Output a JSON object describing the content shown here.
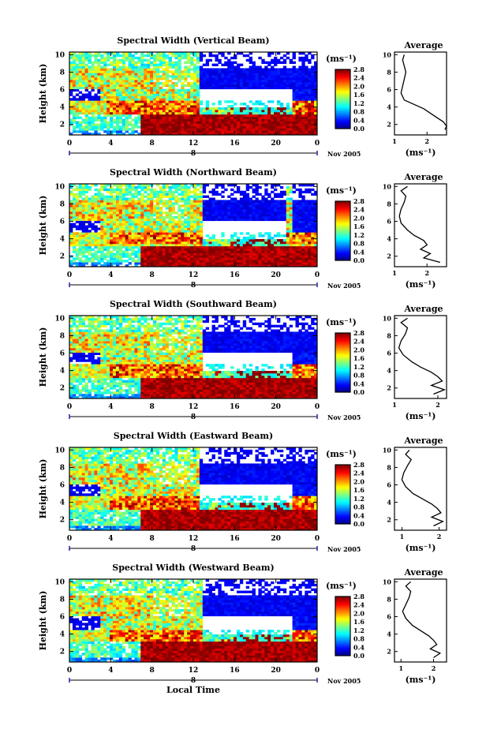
{
  "chart_data": [
    {
      "type": "heatmap",
      "title": "Spectral Width (Vertical Beam)",
      "ylabel": "Height (km)",
      "xlabel": "",
      "x_ticks": [
        "0",
        "4",
        "8",
        "12",
        "16",
        "20",
        "0"
      ],
      "y_ticks": [
        "2",
        "4",
        "6",
        "8",
        "10"
      ],
      "xlim": [
        0,
        24
      ],
      "ylim": [
        0.8,
        10.3
      ],
      "date_label": "8",
      "date_suffix": "Nov 2005",
      "colorbar": {
        "unit": "(ms⁻¹)",
        "range": [
          0.0,
          2.8
        ],
        "ticks": [
          "2.8",
          "2.4",
          "2.0",
          "1.6",
          "1.2",
          "0.8",
          "0.4",
          "0.0"
        ]
      },
      "profile": {
        "title": "Average",
        "xlabel": "(ms⁻¹)",
        "x_ticks": [
          "1",
          "2"
        ],
        "xlim": [
          1,
          2.6
        ],
        "y_ticks": [
          "2",
          "4",
          "6",
          "8",
          "10"
        ],
        "x": [
          1.3,
          1.25,
          1.3,
          1.35,
          1.3,
          1.25,
          1.2,
          1.3,
          1.6,
          1.9,
          2.1,
          2.3,
          2.5,
          2.6,
          2.55
        ],
        "y": [
          10.0,
          9.4,
          8.7,
          8.0,
          7.2,
          6.4,
          5.6,
          4.8,
          4.3,
          3.8,
          3.3,
          2.8,
          2.3,
          1.8,
          1.4
        ]
      },
      "field": {
        "peak_band": [
          3.4,
          4.3
        ],
        "peak_start": 3.5,
        "core_start": 7.0,
        "upper_gap": [
          12.5,
          21.5
        ]
      }
    },
    {
      "type": "heatmap",
      "title": "Spectral Width (Northward Beam)",
      "ylabel": "Height (km)",
      "xlabel": "",
      "x_ticks": [
        "0",
        "4",
        "8",
        "12",
        "16",
        "20",
        "0"
      ],
      "y_ticks": [
        "2",
        "4",
        "6",
        "8",
        "10"
      ],
      "xlim": [
        0,
        24
      ],
      "ylim": [
        0.8,
        10.3
      ],
      "date_label": "8",
      "date_suffix": "Nov 2005",
      "colorbar": {
        "unit": "(ms⁻¹)",
        "range": [
          0.0,
          2.8
        ],
        "ticks": [
          "2.8",
          "2.4",
          "2.0",
          "1.6",
          "1.2",
          "0.8",
          "0.4",
          "0.0"
        ]
      },
      "profile": {
        "title": "Average",
        "xlabel": "(ms⁻¹)",
        "x_ticks": [
          "1",
          "2"
        ],
        "xlim": [
          1,
          2.6
        ],
        "y_ticks": [
          "2",
          "4",
          "6",
          "8",
          "10"
        ],
        "x": [
          1.4,
          1.2,
          1.35,
          1.3,
          1.2,
          1.15,
          1.2,
          1.4,
          1.6,
          1.9,
          2.0,
          1.8,
          2.1,
          1.9,
          2.4
        ],
        "y": [
          10.0,
          9.5,
          8.9,
          8.2,
          7.4,
          6.6,
          5.8,
          5.0,
          4.4,
          3.8,
          3.3,
          2.8,
          2.3,
          1.8,
          1.3
        ]
      },
      "field": {
        "peak_band": [
          3.6,
          4.4
        ],
        "peak_start": 4.0,
        "core_start": 7.0,
        "upper_gap": [
          12.8,
          21.0
        ]
      }
    },
    {
      "type": "heatmap",
      "title": "Spectral Width (Southward Beam)",
      "ylabel": "Height (km)",
      "xlabel": "",
      "x_ticks": [
        "0",
        "4",
        "8",
        "12",
        "16",
        "20",
        "0"
      ],
      "y_ticks": [
        "2",
        "4",
        "6",
        "8",
        "10"
      ],
      "xlim": [
        0,
        24
      ],
      "ylim": [
        0.8,
        10.3
      ],
      "date_label": "8",
      "date_suffix": "Nov 2005",
      "colorbar": {
        "unit": "(ms⁻¹)",
        "range": [
          0.0,
          2.8
        ],
        "ticks": [
          "2.8",
          "2.4",
          "2.0",
          "1.6",
          "1.2",
          "0.8",
          "0.4",
          "0.0"
        ]
      },
      "profile": {
        "title": "Average",
        "xlabel": "(ms⁻¹)",
        "x_ticks": [
          "1",
          "2"
        ],
        "xlim": [
          1,
          2.2
        ],
        "y_ticks": [
          "2",
          "4",
          "6",
          "8",
          "10"
        ],
        "x": [
          1.3,
          1.15,
          1.3,
          1.25,
          1.15,
          1.1,
          1.2,
          1.4,
          1.6,
          1.85,
          2.0,
          2.1,
          1.85,
          2.15,
          1.9
        ],
        "y": [
          10.0,
          9.5,
          8.9,
          8.2,
          7.4,
          6.6,
          5.8,
          5.0,
          4.4,
          3.8,
          3.3,
          2.8,
          2.3,
          1.8,
          1.3
        ]
      },
      "field": {
        "peak_band": [
          3.5,
          4.3
        ],
        "peak_start": 4.0,
        "core_start": 7.0,
        "upper_gap": [
          13.0,
          21.5
        ]
      }
    },
    {
      "type": "heatmap",
      "title": "Spectral Width (Eastward Beam)",
      "ylabel": "Height (km)",
      "xlabel": "",
      "x_ticks": [
        "0",
        "4",
        "8",
        "12",
        "16",
        "20",
        "0"
      ],
      "y_ticks": [
        "2",
        "4",
        "6",
        "8",
        "10"
      ],
      "xlim": [
        0,
        24
      ],
      "ylim": [
        0.8,
        10.3
      ],
      "date_label": "8",
      "date_suffix": "Nov 2005",
      "colorbar": {
        "unit": "(ms⁻¹)",
        "range": [
          0.0,
          2.8
        ],
        "ticks": [
          "2.8",
          "2.4",
          "2.0",
          "1.6",
          "1.2",
          "0.8",
          "0.4",
          "0.0"
        ]
      },
      "profile": {
        "title": "Average",
        "xlabel": "(ms⁻¹)",
        "x_ticks": [
          "1",
          "2"
        ],
        "xlim": [
          0.8,
          2.2
        ],
        "y_ticks": [
          "2",
          "4",
          "6",
          "8",
          "10"
        ],
        "x": [
          1.2,
          1.1,
          1.25,
          1.15,
          1.05,
          1.0,
          1.1,
          1.3,
          1.55,
          1.8,
          1.95,
          2.05,
          1.8,
          2.1,
          1.85
        ],
        "y": [
          10.0,
          9.5,
          8.9,
          8.2,
          7.4,
          6.6,
          5.8,
          5.0,
          4.4,
          3.8,
          3.3,
          2.8,
          2.3,
          1.8,
          1.3
        ]
      },
      "field": {
        "peak_band": [
          3.5,
          4.3
        ],
        "peak_start": 4.0,
        "core_start": 7.0,
        "upper_gap": [
          12.5,
          21.5
        ]
      }
    },
    {
      "type": "heatmap",
      "title": "Spectral Width (Westward Beam)",
      "ylabel": "Height (km)",
      "xlabel": "Local Time",
      "x_ticks": [
        "0",
        "4",
        "8",
        "12",
        "16",
        "20",
        "0"
      ],
      "y_ticks": [
        "2",
        "4",
        "6",
        "8",
        "10"
      ],
      "xlim": [
        0,
        24
      ],
      "ylim": [
        0.8,
        10.3
      ],
      "date_label": "8",
      "date_suffix": "Nov 2005",
      "colorbar": {
        "unit": "(ms⁻¹)",
        "range": [
          0.0,
          2.8
        ],
        "ticks": [
          "2.8",
          "2.4",
          "2.0",
          "1.6",
          "1.2",
          "0.8",
          "0.4",
          "0.0"
        ]
      },
      "profile": {
        "title": "Average",
        "xlabel": "(ms⁻¹)",
        "x_ticks": [
          "1",
          "2"
        ],
        "xlim": [
          0.8,
          2.4
        ],
        "y_ticks": [
          "2",
          "4",
          "6",
          "8",
          "10"
        ],
        "x": [
          1.3,
          1.15,
          1.3,
          1.25,
          1.15,
          1.05,
          1.15,
          1.35,
          1.6,
          1.85,
          2.0,
          2.1,
          1.9,
          2.2,
          2.0
        ],
        "y": [
          10.0,
          9.5,
          8.9,
          8.2,
          7.4,
          6.6,
          5.8,
          5.0,
          4.4,
          3.8,
          3.3,
          2.8,
          2.3,
          1.8,
          1.3
        ]
      },
      "field": {
        "peak_band": [
          3.4,
          4.2
        ],
        "peak_start": 4.0,
        "core_start": 7.0,
        "upper_gap": [
          13.0,
          21.5
        ]
      }
    }
  ]
}
